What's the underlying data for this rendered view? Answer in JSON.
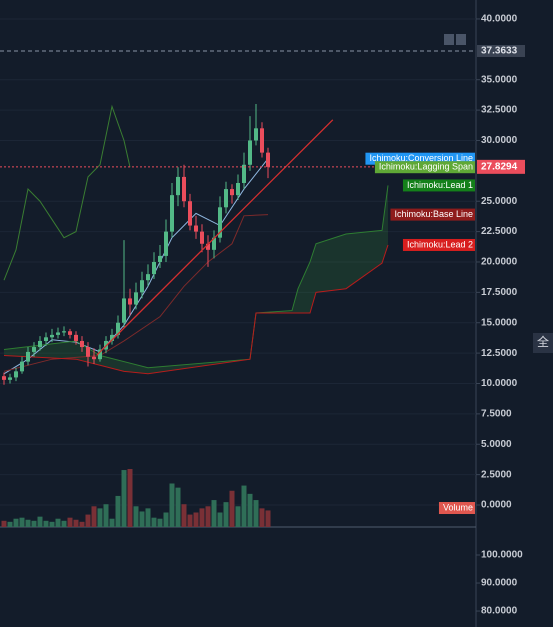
{
  "chart_data": {
    "type": "candlestick",
    "ylim": [
      -1.81,
      41.56
    ],
    "yticks": [
      {
        "value": 0,
        "label": "0.0000"
      },
      {
        "value": 2.5,
        "label": "2.5000"
      },
      {
        "value": 5,
        "label": "5.0000"
      },
      {
        "value": 7.5,
        "label": "7.5000"
      },
      {
        "value": 10,
        "label": "10.0000"
      },
      {
        "value": 12.5,
        "label": "12.5000"
      },
      {
        "value": 15,
        "label": "15.0000"
      },
      {
        "value": 17.5,
        "label": "17.5000"
      },
      {
        "value": 20,
        "label": "20.0000"
      },
      {
        "value": 22.5,
        "label": "22.5000"
      },
      {
        "value": 25,
        "label": "25.0000"
      },
      {
        "value": 30,
        "label": "30.0000"
      },
      {
        "value": 32.5,
        "label": "32.5000"
      },
      {
        "value": 35,
        "label": "35.0000"
      },
      {
        "value": 40,
        "label": "40.0000"
      }
    ],
    "grid": true,
    "candles": {
      "up_color": "#53b987",
      "down_color": "#eb4d5c",
      "open": [
        10.6,
        10.3,
        10.5,
        11.0,
        11.8,
        12.6,
        13.0,
        13.5,
        13.8,
        14.0,
        14.2,
        14.3,
        14.0,
        13.5,
        13.0,
        12.2,
        12.0,
        12.8,
        13.5,
        14.0,
        15.0,
        17.0,
        16.5,
        17.5,
        18.5,
        19.0,
        20.0,
        20.5,
        22.5,
        25.5,
        27.0,
        25.0,
        23.0,
        22.5,
        21.5,
        21.0,
        22.0,
        24.5,
        26.0,
        25.5,
        26.5,
        28.0,
        30.0,
        31.0,
        29.0
      ],
      "high": [
        10.9,
        10.8,
        11.3,
        12.2,
        13.0,
        13.4,
        13.9,
        14.2,
        14.5,
        14.6,
        14.7,
        14.5,
        14.3,
        13.9,
        13.4,
        12.9,
        13.2,
        13.9,
        14.5,
        15.6,
        21.8,
        17.8,
        18.3,
        19.2,
        19.8,
        20.8,
        21.4,
        23.5,
        26.5,
        27.8,
        28.0,
        25.6,
        23.8,
        23.1,
        22.2,
        22.6,
        25.4,
        26.6,
        26.4,
        27.2,
        29.0,
        32.0,
        33.0,
        31.5,
        29.4
      ],
      "low": [
        9.9,
        10.0,
        10.2,
        10.8,
        11.5,
        12.2,
        12.7,
        13.1,
        13.4,
        13.7,
        13.9,
        13.7,
        13.2,
        12.6,
        11.4,
        11.6,
        11.8,
        12.5,
        13.2,
        13.7,
        14.6,
        15.6,
        16.1,
        17.0,
        18.0,
        18.6,
        19.5,
        20.0,
        22.0,
        24.6,
        24.5,
        22.6,
        21.9,
        20.8,
        19.6,
        20.3,
        21.6,
        24.0,
        24.8,
        25.1,
        26.0,
        27.5,
        29.6,
        28.6,
        26.9
      ],
      "close": [
        10.3,
        10.5,
        11.0,
        11.8,
        12.6,
        13.0,
        13.5,
        13.8,
        14.0,
        14.2,
        14.3,
        14.0,
        13.5,
        13.0,
        12.2,
        12.0,
        12.8,
        13.5,
        14.0,
        15.0,
        17.0,
        16.5,
        17.5,
        18.5,
        19.0,
        20.0,
        20.5,
        22.5,
        25.5,
        27.0,
        25.0,
        23.0,
        22.5,
        21.5,
        21.0,
        22.0,
        24.5,
        26.0,
        25.5,
        26.5,
        28.0,
        30.0,
        31.0,
        29.0,
        27.8294
      ]
    },
    "volume": {
      "name": "Volume",
      "color": "#e0574f",
      "up_color": "#2f6e57",
      "down_color": "#7a3036",
      "values": [
        6,
        5,
        8,
        9,
        7,
        6,
        10,
        6,
        5,
        8,
        6,
        9,
        7,
        5,
        12,
        20,
        18,
        22,
        8,
        30,
        55,
        56,
        20,
        15,
        18,
        9,
        8,
        14,
        42,
        38,
        22,
        12,
        14,
        18,
        20,
        26,
        14,
        24,
        35,
        20,
        40,
        32,
        26,
        18,
        16
      ]
    },
    "series": [
      {
        "name": "Ichimoku:Conversion Line",
        "color": "#2196f3",
        "line_color": "#8fb7e0",
        "x": [
          0,
          4,
          8,
          12,
          16,
          20,
          24,
          28,
          32,
          36,
          40,
          44
        ],
        "values": [
          10.8,
          12.0,
          13.6,
          13.4,
          12.6,
          14.8,
          18.0,
          22.0,
          24.0,
          23.0,
          26.0,
          28.5
        ]
      },
      {
        "name": "Ichimoku:Lagging Span",
        "color": "#5fa836",
        "line_color": "#3a7d32",
        "x": [
          0,
          2,
          4,
          6,
          8,
          10,
          12,
          14,
          16,
          18,
          20,
          21
        ],
        "values": [
          18.5,
          21,
          26,
          25,
          23.5,
          22,
          22.5,
          27,
          28,
          32.8,
          30,
          27.8
        ]
      },
      {
        "name": "Ichimoku:Lead 1",
        "color": "#14801a",
        "line_color": "#2e7d32",
        "x": [
          0,
          12,
          16,
          24,
          41,
          42,
          48,
          49,
          51,
          52,
          57,
          63,
          64
        ],
        "values": [
          12.8,
          13.5,
          12.3,
          11.3,
          12.0,
          15.8,
          16.0,
          17.8,
          20.0,
          21.5,
          22.3,
          22.6,
          26.3
        ]
      },
      {
        "name": "Ichimoku:Base Line",
        "color": "#8e1c1c",
        "line_color": "#7d2a2a",
        "x": [
          0,
          8,
          16,
          20,
          26,
          30,
          34,
          38,
          40,
          44
        ],
        "values": [
          11.0,
          12.0,
          12.3,
          13.5,
          15.5,
          18.0,
          20.0,
          21.5,
          23.8,
          23.9
        ]
      },
      {
        "name": "Ichimoku:Lead 2",
        "color": "#d81e1e",
        "line_color": "#b71c1c",
        "x": [
          0,
          12,
          16,
          20,
          24,
          41,
          42,
          51,
          52,
          57,
          63,
          64
        ],
        "values": [
          12.3,
          12.0,
          11.5,
          11.0,
          10.8,
          12.0,
          15.8,
          15.8,
          17.5,
          17.8,
          19.9,
          21.4
        ]
      }
    ],
    "reference_line": {
      "value": 37.3633,
      "color": "#8a94a6"
    },
    "trend_line": {
      "color": "#d32f2f",
      "x": [
        15.5,
        54.8
      ],
      "y": [
        12.35,
        31.7
      ]
    },
    "lower_pane": {
      "ylim": [
        74.3,
        110
      ],
      "yticks": [
        {
          "value": 100,
          "label": "100.0000"
        },
        {
          "value": 90,
          "label": "90.0000"
        },
        {
          "value": 80,
          "label": "80.0000"
        }
      ]
    },
    "side_tab": "全"
  }
}
